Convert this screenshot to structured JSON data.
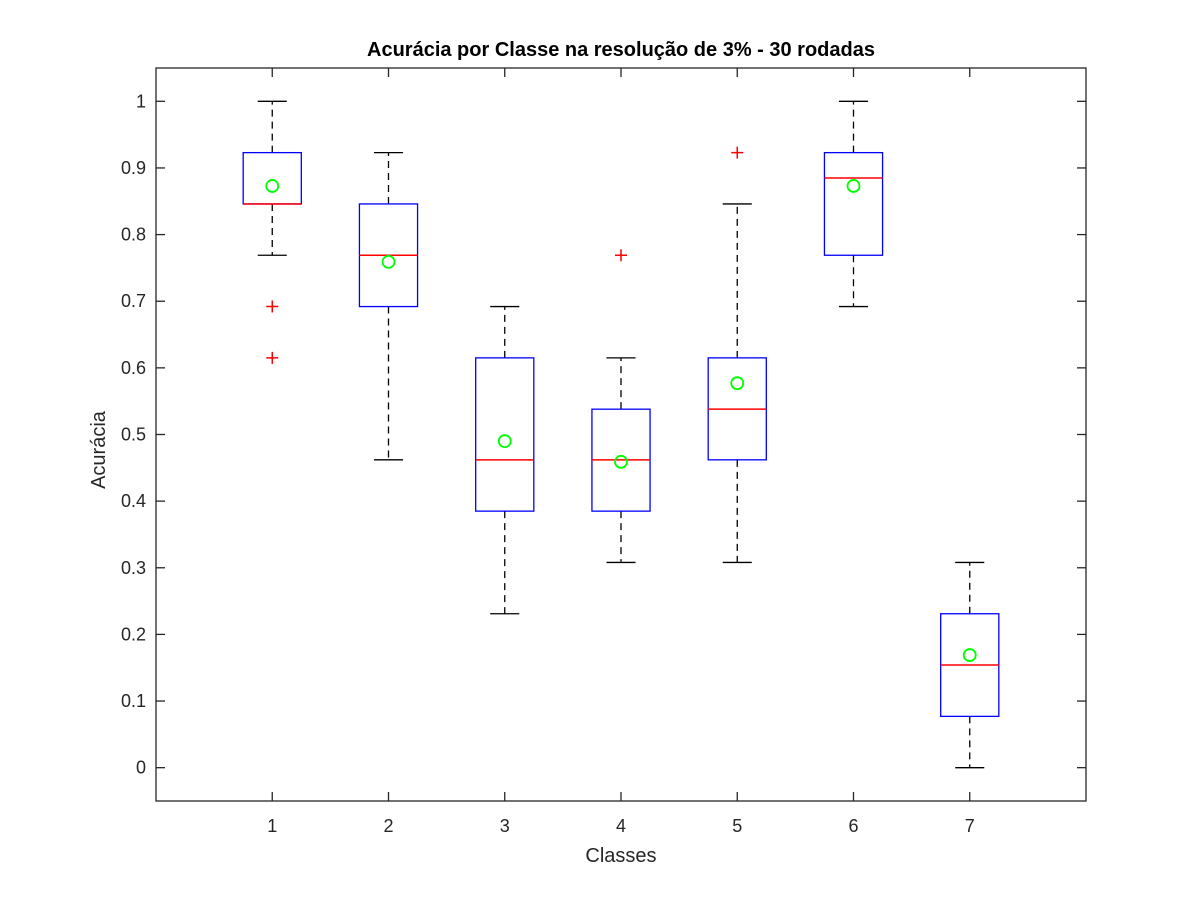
{
  "chart_data": {
    "type": "boxplot",
    "title": "Acurácia por Classe na resolução de 3% - 30 rodadas",
    "xlabel": "Classes",
    "ylabel": "Acurácia",
    "categories": [
      "1",
      "2",
      "3",
      "4",
      "5",
      "6",
      "7"
    ],
    "ylim": [
      -0.05,
      1.05
    ],
    "yticks": [
      0,
      0.1,
      0.2,
      0.3,
      0.4,
      0.5,
      0.6,
      0.7,
      0.8,
      0.9,
      1
    ],
    "ytick_labels": [
      "0",
      "0.1",
      "0.2",
      "0.3",
      "0.4",
      "0.5",
      "0.6",
      "0.7",
      "0.8",
      "0.9",
      "1"
    ],
    "grid": false,
    "boxes": [
      {
        "category": "1",
        "whisker_low": 0.769,
        "q1": 0.846,
        "median": 0.846,
        "q3": 0.923,
        "whisker_high": 1.0,
        "mean": 0.873,
        "outliers": [
          0.692,
          0.615
        ]
      },
      {
        "category": "2",
        "whisker_low": 0.462,
        "q1": 0.692,
        "median": 0.769,
        "q3": 0.846,
        "whisker_high": 0.923,
        "mean": 0.759,
        "outliers": []
      },
      {
        "category": "3",
        "whisker_low": 0.231,
        "q1": 0.385,
        "median": 0.462,
        "q3": 0.615,
        "whisker_high": 0.692,
        "mean": 0.49,
        "outliers": []
      },
      {
        "category": "4",
        "whisker_low": 0.308,
        "q1": 0.385,
        "median": 0.462,
        "q3": 0.538,
        "whisker_high": 0.615,
        "mean": 0.459,
        "outliers": [
          0.769
        ]
      },
      {
        "category": "5",
        "whisker_low": 0.308,
        "q1": 0.462,
        "median": 0.538,
        "q3": 0.615,
        "whisker_high": 0.846,
        "mean": 0.577,
        "outliers": [
          0.923
        ]
      },
      {
        "category": "6",
        "whisker_low": 0.692,
        "q1": 0.769,
        "median": 0.885,
        "q3": 0.923,
        "whisker_high": 1.0,
        "mean": 0.873,
        "outliers": []
      },
      {
        "category": "7",
        "whisker_low": 0.0,
        "q1": 0.077,
        "median": 0.154,
        "q3": 0.231,
        "whisker_high": 0.308,
        "mean": 0.169,
        "outliers": []
      }
    ],
    "colors": {
      "box": "#0000ff",
      "median": "#ff0000",
      "whisker": "#000000",
      "outlier": "#ff0000",
      "mean": "#00ff00",
      "axes": "#262626"
    }
  }
}
